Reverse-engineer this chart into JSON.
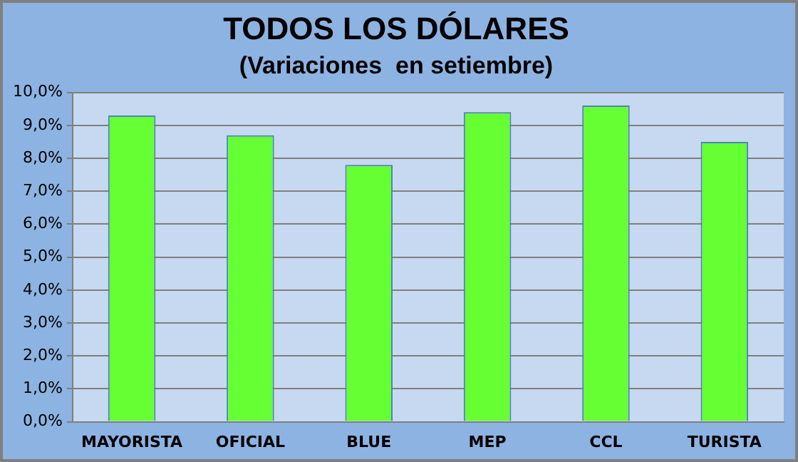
{
  "chart_data": {
    "type": "bar",
    "title": "TODOS LOS DÓLARES",
    "subtitle": "(Variaciones  en setiembre)",
    "categories": [
      "MAYORISTA",
      "OFICIAL",
      "BLUE",
      "MEP",
      "CCL",
      "TURISTA"
    ],
    "values": [
      9.3,
      8.7,
      7.8,
      9.4,
      9.6,
      8.5
    ],
    "color": "#66ff33",
    "ylim": [
      0,
      10
    ],
    "yticks": [
      {
        "value": 0,
        "label": "0,0%"
      },
      {
        "value": 1,
        "label": "1,0%"
      },
      {
        "value": 2,
        "label": "2,0%"
      },
      {
        "value": 3,
        "label": "3,0%"
      },
      {
        "value": 4,
        "label": "4,0%"
      },
      {
        "value": 5,
        "label": "5,0%"
      },
      {
        "value": 6,
        "label": "6,0%"
      },
      {
        "value": 7,
        "label": "7,0%"
      },
      {
        "value": 8,
        "label": "8,0%"
      },
      {
        "value": 9,
        "label": "9,0%"
      },
      {
        "value": 10,
        "label": "10,0%"
      }
    ],
    "grid": "y"
  }
}
